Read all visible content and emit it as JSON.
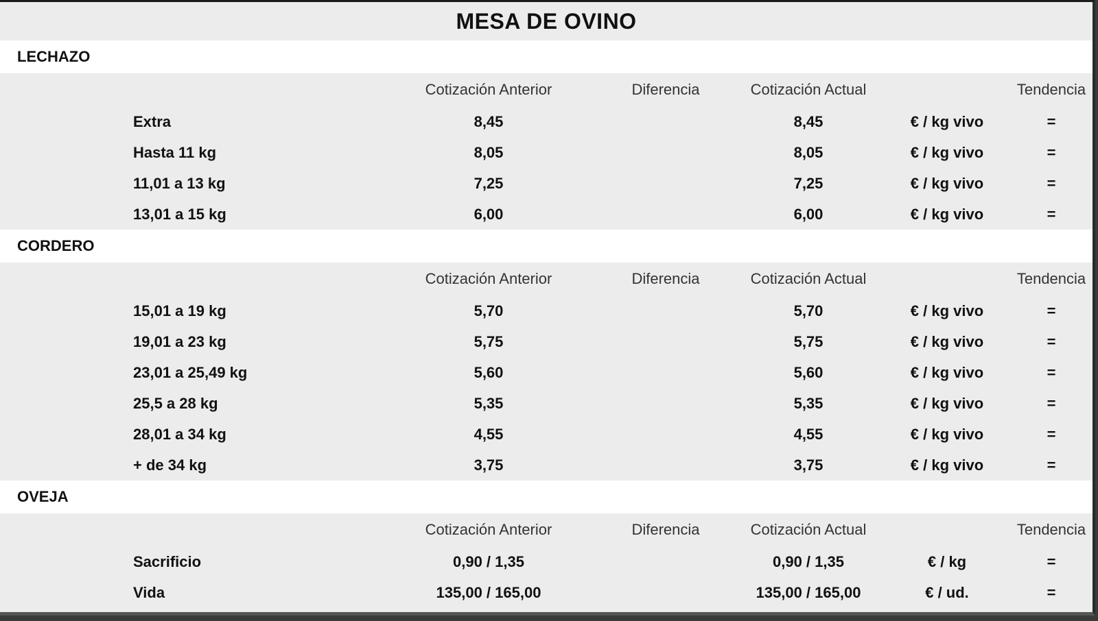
{
  "title": "MESA DE OVINO",
  "headers": {
    "prev": "Cotización Anterior",
    "diff": "Diferencia",
    "curr": "Cotización Actual",
    "trend": "Tendencia"
  },
  "sections": [
    {
      "name": "LECHAZO",
      "rows": [
        {
          "label": "Extra",
          "prev": "8,45",
          "diff": "",
          "curr": "8,45",
          "unit": "€ / kg vivo",
          "trend": "="
        },
        {
          "label": "Hasta 11 kg",
          "prev": "8,05",
          "diff": "",
          "curr": "8,05",
          "unit": "€ / kg vivo",
          "trend": "="
        },
        {
          "label": "11,01 a 13 kg",
          "prev": "7,25",
          "diff": "",
          "curr": "7,25",
          "unit": "€ / kg vivo",
          "trend": "="
        },
        {
          "label": "13,01 a 15 kg",
          "prev": "6,00",
          "diff": "",
          "curr": "6,00",
          "unit": "€ / kg vivo",
          "trend": "="
        }
      ]
    },
    {
      "name": "CORDERO",
      "rows": [
        {
          "label": "15,01 a 19 kg",
          "prev": "5,70",
          "diff": "",
          "curr": "5,70",
          "unit": "€ / kg vivo",
          "trend": "="
        },
        {
          "label": "19,01 a 23 kg",
          "prev": "5,75",
          "diff": "",
          "curr": "5,75",
          "unit": "€ / kg vivo",
          "trend": "="
        },
        {
          "label": "23,01 a 25,49 kg",
          "prev": "5,60",
          "diff": "",
          "curr": "5,60",
          "unit": "€ / kg vivo",
          "trend": "="
        },
        {
          "label": "25,5 a 28 kg",
          "prev": "5,35",
          "diff": "",
          "curr": "5,35",
          "unit": "€ / kg vivo",
          "trend": "="
        },
        {
          "label": "28,01 a 34 kg",
          "prev": "4,55",
          "diff": "",
          "curr": "4,55",
          "unit": "€ / kg vivo",
          "trend": "="
        },
        {
          "label": "+ de 34 kg",
          "prev": "3,75",
          "diff": "",
          "curr": "3,75",
          "unit": "€ / kg vivo",
          "trend": "="
        }
      ]
    },
    {
      "name": "OVEJA",
      "rows": [
        {
          "label": "Sacrificio",
          "prev": "0,90 / 1,35",
          "diff": "",
          "curr": "0,90 / 1,35",
          "unit": "€ / kg",
          "trend": "="
        },
        {
          "label": "Vida",
          "prev": "135,00 / 165,00",
          "diff": "",
          "curr": "135,00 / 165,00",
          "unit": "€ / ud.",
          "trend": "="
        }
      ]
    }
  ]
}
